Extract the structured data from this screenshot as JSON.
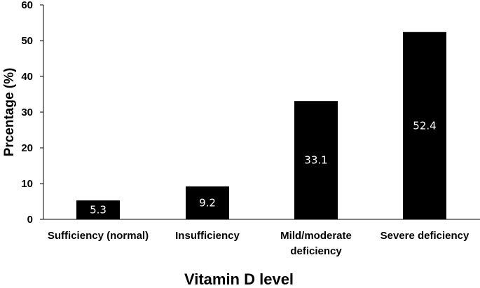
{
  "chart_data": {
    "type": "bar",
    "title": "",
    "xlabel": "Vitamin D level",
    "ylabel": "Prcentage (%)",
    "categories": [
      [
        "Sufficiency (normal)"
      ],
      [
        "Insufficiency"
      ],
      [
        "Mild/moderate",
        "deficiency"
      ],
      [
        "Severe deficiency"
      ]
    ],
    "values": [
      5.3,
      9.2,
      33.1,
      52.4
    ],
    "data_labels": [
      "5.3",
      "9.2",
      "33.1",
      "52.4"
    ],
    "ylim": [
      0,
      60
    ],
    "yticks": [
      0,
      10,
      20,
      30,
      40,
      50,
      60
    ],
    "grid": false,
    "legend": "none",
    "bar_color": "#000000",
    "data_label_color": "#ffffff",
    "axis_color": "#000000"
  }
}
